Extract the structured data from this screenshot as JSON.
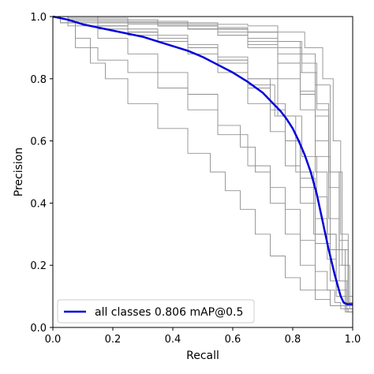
{
  "chart_data": {
    "type": "line",
    "title": "",
    "xlabel": "Recall",
    "ylabel": "Precision",
    "xlim": [
      0.0,
      1.0
    ],
    "ylim": [
      0.0,
      1.0
    ],
    "xticks": [
      "0.0",
      "0.2",
      "0.4",
      "0.6",
      "0.8",
      "1.0"
    ],
    "yticks": [
      "0.0",
      "0.2",
      "0.4",
      "0.6",
      "0.8",
      "1.0"
    ],
    "grid": false,
    "legend_position": "lower-left",
    "colors": {
      "main": "#0000dd",
      "class": "#909090"
    },
    "series": [
      {
        "name": "all classes 0.806 mAP@0.5",
        "color": "#0000dd",
        "x": [
          0.0,
          0.05,
          0.1,
          0.15,
          0.2,
          0.25,
          0.3,
          0.35,
          0.4,
          0.45,
          0.5,
          0.55,
          0.6,
          0.65,
          0.7,
          0.72,
          0.74,
          0.76,
          0.78,
          0.8,
          0.82,
          0.84,
          0.86,
          0.88,
          0.9,
          0.92,
          0.94,
          0.96,
          0.97,
          0.98,
          1.0
        ],
        "y": [
          1.0,
          0.99,
          0.975,
          0.965,
          0.955,
          0.945,
          0.935,
          0.92,
          0.905,
          0.89,
          0.87,
          0.845,
          0.82,
          0.79,
          0.755,
          0.735,
          0.715,
          0.695,
          0.67,
          0.64,
          0.6,
          0.555,
          0.5,
          0.43,
          0.34,
          0.25,
          0.17,
          0.1,
          0.08,
          0.075,
          0.075
        ]
      },
      {
        "x": [
          0.0,
          0.05,
          0.1,
          0.2,
          0.3,
          0.4,
          0.5,
          0.6,
          0.7,
          0.75,
          0.8,
          0.85,
          0.9,
          0.93,
          0.95,
          0.97,
          1.0
        ],
        "y": [
          1.0,
          0.98,
          0.9,
          0.86,
          0.82,
          0.77,
          0.7,
          0.62,
          0.52,
          0.45,
          0.38,
          0.28,
          0.18,
          0.12,
          0.08,
          0.06,
          0.05
        ]
      },
      {
        "x": [
          0.0,
          0.05,
          0.1,
          0.15,
          0.2,
          0.3,
          0.4,
          0.5,
          0.55,
          0.6,
          0.65,
          0.7,
          0.75,
          0.8,
          0.85,
          0.9,
          0.95,
          1.0
        ],
        "y": [
          1.0,
          0.98,
          0.93,
          0.85,
          0.8,
          0.72,
          0.64,
          0.56,
          0.5,
          0.44,
          0.38,
          0.3,
          0.23,
          0.16,
          0.12,
          0.09,
          0.07,
          0.06
        ]
      },
      {
        "x": [
          0.0,
          0.1,
          0.2,
          0.3,
          0.4,
          0.5,
          0.6,
          0.65,
          0.7,
          0.75,
          0.8,
          0.85,
          0.9,
          0.95,
          1.0
        ],
        "y": [
          1.0,
          0.97,
          0.93,
          0.88,
          0.82,
          0.75,
          0.65,
          0.58,
          0.5,
          0.4,
          0.3,
          0.2,
          0.12,
          0.07,
          0.05
        ]
      },
      {
        "x": [
          0.0,
          0.1,
          0.2,
          0.3,
          0.4,
          0.5,
          0.6,
          0.7,
          0.75,
          0.8,
          0.85,
          0.9,
          0.95,
          1.0
        ],
        "y": [
          1.0,
          0.99,
          0.97,
          0.95,
          0.92,
          0.88,
          0.82,
          0.72,
          0.63,
          0.52,
          0.4,
          0.27,
          0.15,
          0.08
        ]
      },
      {
        "x": [
          0.0,
          0.1,
          0.2,
          0.3,
          0.4,
          0.5,
          0.6,
          0.7,
          0.8,
          0.85,
          0.9,
          0.95,
          1.0
        ],
        "y": [
          1.0,
          0.995,
          0.99,
          0.985,
          0.98,
          0.97,
          0.96,
          0.92,
          0.85,
          0.75,
          0.55,
          0.25,
          0.07
        ]
      },
      {
        "x": [
          0.0,
          0.1,
          0.2,
          0.3,
          0.4,
          0.5,
          0.6,
          0.7,
          0.8,
          0.85,
          0.9,
          0.93,
          0.96,
          1.0
        ],
        "y": [
          1.0,
          0.99,
          0.985,
          0.98,
          0.97,
          0.96,
          0.94,
          0.9,
          0.8,
          0.7,
          0.5,
          0.3,
          0.12,
          0.07
        ]
      },
      {
        "x": [
          0.0,
          0.1,
          0.2,
          0.3,
          0.4,
          0.5,
          0.6,
          0.7,
          0.8,
          0.85,
          0.9,
          0.95,
          0.98,
          1.0
        ],
        "y": [
          1.0,
          0.99,
          0.985,
          0.98,
          0.975,
          0.97,
          0.96,
          0.95,
          0.92,
          0.88,
          0.78,
          0.5,
          0.2,
          0.06
        ]
      },
      {
        "x": [
          0.0,
          0.1,
          0.2,
          0.3,
          0.4,
          0.5,
          0.6,
          0.7,
          0.8,
          0.88,
          0.92,
          0.95,
          0.97,
          1.0
        ],
        "y": [
          1.0,
          1.0,
          0.995,
          0.99,
          0.985,
          0.98,
          0.975,
          0.97,
          0.95,
          0.9,
          0.8,
          0.6,
          0.3,
          0.1
        ]
      },
      {
        "x": [
          0.0,
          0.1,
          0.2,
          0.3,
          0.4,
          0.5,
          0.6,
          0.7,
          0.75,
          0.8,
          0.85,
          0.9,
          0.95,
          1.0
        ],
        "y": [
          1.0,
          0.99,
          0.97,
          0.95,
          0.92,
          0.9,
          0.86,
          0.8,
          0.72,
          0.6,
          0.45,
          0.3,
          0.15,
          0.08
        ]
      },
      {
        "x": [
          0.0,
          0.1,
          0.2,
          0.3,
          0.4,
          0.5,
          0.6,
          0.7,
          0.75,
          0.8,
          0.85,
          0.9,
          0.93,
          0.96,
          1.0
        ],
        "y": [
          1.0,
          0.985,
          0.97,
          0.95,
          0.93,
          0.9,
          0.85,
          0.77,
          0.7,
          0.6,
          0.48,
          0.35,
          0.22,
          0.1,
          0.05
        ]
      },
      {
        "x": [
          0.0,
          0.1,
          0.2,
          0.3,
          0.4,
          0.5,
          0.6,
          0.7,
          0.8,
          0.85,
          0.9,
          0.94,
          0.97,
          1.0
        ],
        "y": [
          1.0,
          0.99,
          0.98,
          0.975,
          0.97,
          0.96,
          0.94,
          0.91,
          0.85,
          0.76,
          0.6,
          0.35,
          0.15,
          0.07
        ]
      },
      {
        "x": [
          0.0,
          0.1,
          0.2,
          0.3,
          0.4,
          0.5,
          0.6,
          0.7,
          0.8,
          0.85,
          0.9,
          0.94,
          0.97,
          1.0
        ],
        "y": [
          1.0,
          0.995,
          0.99,
          0.98,
          0.97,
          0.96,
          0.95,
          0.93,
          0.88,
          0.82,
          0.68,
          0.45,
          0.2,
          0.07
        ]
      },
      {
        "x": [
          0.0,
          0.1,
          0.2,
          0.3,
          0.4,
          0.5,
          0.6,
          0.7,
          0.78,
          0.84,
          0.9,
          0.95,
          1.0
        ],
        "y": [
          1.0,
          0.98,
          0.96,
          0.94,
          0.92,
          0.9,
          0.86,
          0.78,
          0.68,
          0.5,
          0.3,
          0.15,
          0.07
        ]
      },
      {
        "x": [
          0.0,
          0.1,
          0.2,
          0.3,
          0.4,
          0.5,
          0.6,
          0.7,
          0.8,
          0.86,
          0.9,
          0.94,
          0.97,
          1.0
        ],
        "y": [
          1.0,
          0.995,
          0.99,
          0.985,
          0.98,
          0.97,
          0.96,
          0.95,
          0.9,
          0.82,
          0.7,
          0.5,
          0.25,
          0.08
        ]
      },
      {
        "x": [
          0.0,
          0.1,
          0.2,
          0.3,
          0.4,
          0.5,
          0.6,
          0.7,
          0.8,
          0.86,
          0.9,
          0.93,
          0.96,
          1.0
        ],
        "y": [
          1.0,
          0.99,
          0.98,
          0.96,
          0.94,
          0.91,
          0.87,
          0.8,
          0.68,
          0.55,
          0.42,
          0.3,
          0.15,
          0.06
        ]
      },
      {
        "x": [
          0.0,
          0.1,
          0.2,
          0.3,
          0.4,
          0.5,
          0.6,
          0.7,
          0.8,
          0.86,
          0.9,
          0.94,
          0.97,
          1.0
        ],
        "y": [
          1.0,
          0.995,
          0.99,
          0.985,
          0.98,
          0.975,
          0.965,
          0.95,
          0.92,
          0.85,
          0.72,
          0.5,
          0.28,
          0.08
        ]
      }
    ]
  }
}
